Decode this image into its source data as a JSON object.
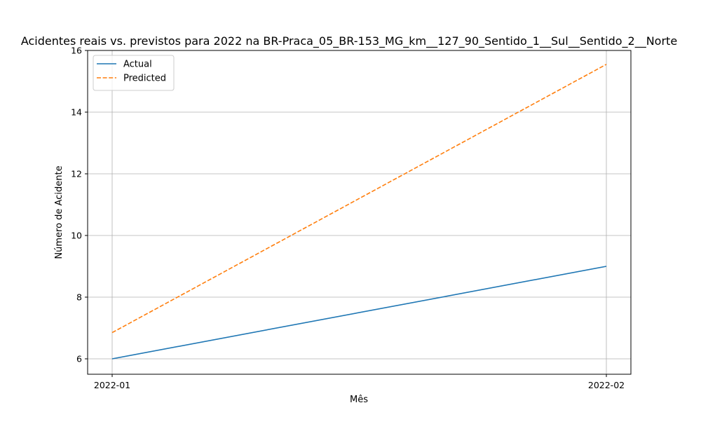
{
  "chart_data": {
    "type": "line",
    "title": "Acidentes reais vs. previstos para 2022 na BR-Praca_05_BR-153_MG_km__127_90_Sentido_1__Sul__Sentido_2__Norte",
    "xlabel": "Mês",
    "ylabel": "Número de Acidente",
    "categories": [
      "2022-01",
      "2022-02"
    ],
    "ylim": [
      5.5,
      16
    ],
    "yticks": [
      6,
      8,
      10,
      12,
      14,
      16
    ],
    "grid": true,
    "legend_position": "top-left",
    "series": [
      {
        "name": "Actual",
        "values": [
          6,
          9
        ],
        "color": "#1f77b4",
        "style": "solid"
      },
      {
        "name": "Predicted",
        "values": [
          6.85,
          15.55
        ],
        "color": "#ff7f0e",
        "style": "dashed"
      }
    ]
  }
}
